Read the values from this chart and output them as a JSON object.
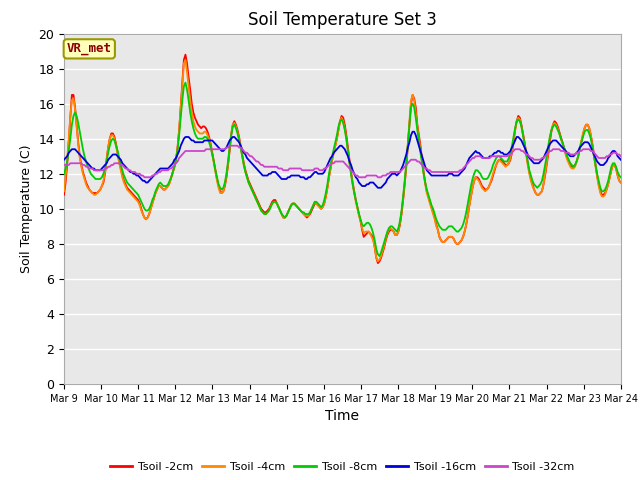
{
  "title": "Soil Temperature Set 3",
  "xlabel": "Time",
  "ylabel": "Soil Temperature (C)",
  "ylim": [
    0,
    20
  ],
  "yticks": [
    0,
    2,
    4,
    6,
    8,
    10,
    12,
    14,
    16,
    18,
    20
  ],
  "x_labels": [
    "Mar 9",
    "Mar 10",
    "Mar 11",
    "Mar 12",
    "Mar 13",
    "Mar 14",
    "Mar 15",
    "Mar 16",
    "Mar 17",
    "Mar 18",
    "Mar 19",
    "Mar 20",
    "Mar 21",
    "Mar 22",
    "Mar 23",
    "Mar 24"
  ],
  "annotation": "VR_met",
  "bg_color": "#e8e8e8",
  "grid_color": "#ffffff",
  "series_colors": [
    "#ff0000",
    "#ff8800",
    "#00cc00",
    "#0000dd",
    "#cc44cc"
  ],
  "series_labels": [
    "Tsoil -2cm",
    "Tsoil -4cm",
    "Tsoil -8cm",
    "Tsoil -16cm",
    "Tsoil -32cm"
  ],
  "tsoil_2cm": [
    10.8,
    11.5,
    12.5,
    13.8,
    15.2,
    16.5,
    16.5,
    15.8,
    14.8,
    13.8,
    13.0,
    12.5,
    12.1,
    11.8,
    11.5,
    11.3,
    11.1,
    11.0,
    10.9,
    10.9,
    10.9,
    10.9,
    11.0,
    11.1,
    11.3,
    11.5,
    12.0,
    12.8,
    13.5,
    14.0,
    14.3,
    14.3,
    14.1,
    13.7,
    13.2,
    12.7,
    12.3,
    11.9,
    11.6,
    11.4,
    11.2,
    11.1,
    11.0,
    10.9,
    10.8,
    10.7,
    10.6,
    10.5,
    10.3,
    10.0,
    9.7,
    9.5,
    9.4,
    9.5,
    9.7,
    10.0,
    10.3,
    10.6,
    10.9,
    11.1,
    11.3,
    11.3,
    11.2,
    11.1,
    11.1,
    11.2,
    11.3,
    11.5,
    11.8,
    12.1,
    12.4,
    12.8,
    13.5,
    14.5,
    15.8,
    17.2,
    18.5,
    18.8,
    18.3,
    17.5,
    16.8,
    16.0,
    15.5,
    15.2,
    15.0,
    14.8,
    14.7,
    14.6,
    14.7,
    14.7,
    14.6,
    14.4,
    14.1,
    13.7,
    13.2,
    12.7,
    12.2,
    11.7,
    11.3,
    11.0,
    10.9,
    11.0,
    11.3,
    11.8,
    12.5,
    13.3,
    14.2,
    14.8,
    15.0,
    14.8,
    14.5,
    14.1,
    13.6,
    13.1,
    12.6,
    12.2,
    11.9,
    11.6,
    11.4,
    11.2,
    11.0,
    10.8,
    10.6,
    10.4,
    10.2,
    10.0,
    9.9,
    9.8,
    9.8,
    9.9,
    10.0,
    10.2,
    10.4,
    10.5,
    10.5,
    10.3,
    10.1,
    9.9,
    9.7,
    9.5,
    9.5,
    9.6,
    9.8,
    10.0,
    10.2,
    10.3,
    10.3,
    10.2,
    10.1,
    10.0,
    9.9,
    9.8,
    9.7,
    9.6,
    9.5,
    9.6,
    9.7,
    9.9,
    10.1,
    10.3,
    10.3,
    10.2,
    10.1,
    10.0,
    10.1,
    10.3,
    10.7,
    11.2,
    11.8,
    12.3,
    12.8,
    13.2,
    13.6,
    14.0,
    14.5,
    15.0,
    15.3,
    15.2,
    14.8,
    14.2,
    13.5,
    12.8,
    12.1,
    11.5,
    11.0,
    10.5,
    10.1,
    9.7,
    9.3,
    8.8,
    8.4,
    8.5,
    8.6,
    8.7,
    8.6,
    8.5,
    8.3,
    7.8,
    7.2,
    6.9,
    7.0,
    7.2,
    7.5,
    7.8,
    8.2,
    8.5,
    8.7,
    8.8,
    8.8,
    8.7,
    8.5,
    8.5,
    8.7,
    9.1,
    9.7,
    10.5,
    11.4,
    12.4,
    13.6,
    14.8,
    16.0,
    16.5,
    16.3,
    15.8,
    14.8,
    14.2,
    13.6,
    12.8,
    12.1,
    11.5,
    11.0,
    10.7,
    10.4,
    10.1,
    9.8,
    9.5,
    9.1,
    8.8,
    8.4,
    8.2,
    8.1,
    8.1,
    8.2,
    8.3,
    8.4,
    8.4,
    8.4,
    8.3,
    8.1,
    8.0,
    8.0,
    8.1,
    8.2,
    8.4,
    8.7,
    9.1,
    9.6,
    10.2,
    10.7,
    11.2,
    11.6,
    11.8,
    11.8,
    11.7,
    11.5,
    11.3,
    11.2,
    11.1,
    11.1,
    11.2,
    11.4,
    11.6,
    11.9,
    12.2,
    12.5,
    12.7,
    12.8,
    12.8,
    12.7,
    12.6,
    12.5,
    12.5,
    12.6,
    12.8,
    13.2,
    13.8,
    14.5,
    15.0,
    15.3,
    15.2,
    14.8,
    14.3,
    13.8,
    13.2,
    12.6,
    12.1,
    11.7,
    11.4,
    11.1,
    10.9,
    10.8,
    10.8,
    10.9,
    11.0,
    11.4,
    11.9,
    12.5,
    13.1,
    13.8,
    14.4,
    14.8,
    15.0,
    14.9,
    14.7,
    14.4,
    14.1,
    13.8,
    13.5,
    13.2,
    12.9,
    12.7,
    12.5,
    12.4,
    12.4,
    12.5,
    12.7,
    13.0,
    13.4,
    13.8,
    14.2,
    14.6,
    14.8,
    14.8,
    14.6,
    14.2,
    13.7,
    13.1,
    12.5,
    11.9,
    11.4,
    11.0,
    10.8,
    10.8,
    10.9,
    11.1,
    11.4,
    11.8,
    12.2,
    12.5,
    12.5,
    12.3,
    11.9,
    11.6,
    11.5
  ],
  "tsoil_4cm": [
    11.0,
    11.8,
    12.8,
    14.0,
    15.3,
    16.2,
    16.3,
    15.7,
    14.7,
    13.7,
    12.9,
    12.4,
    12.0,
    11.7,
    11.4,
    11.2,
    11.1,
    11.0,
    10.9,
    10.8,
    10.8,
    10.9,
    11.0,
    11.1,
    11.3,
    11.6,
    12.1,
    12.8,
    13.5,
    14.0,
    14.2,
    14.2,
    14.0,
    13.6,
    13.1,
    12.6,
    12.2,
    11.8,
    11.5,
    11.3,
    11.1,
    11.0,
    10.9,
    10.8,
    10.7,
    10.6,
    10.5,
    10.4,
    10.2,
    9.9,
    9.7,
    9.5,
    9.4,
    9.5,
    9.7,
    10.0,
    10.3,
    10.6,
    10.9,
    11.1,
    11.3,
    11.3,
    11.2,
    11.1,
    11.1,
    11.2,
    11.3,
    11.5,
    11.8,
    12.1,
    12.4,
    12.8,
    13.5,
    14.5,
    15.8,
    17.0,
    18.3,
    18.5,
    17.8,
    17.0,
    16.2,
    15.5,
    15.0,
    14.7,
    14.5,
    14.4,
    14.3,
    14.3,
    14.3,
    14.4,
    14.4,
    14.2,
    14.0,
    13.6,
    13.1,
    12.6,
    12.1,
    11.6,
    11.2,
    10.9,
    10.9,
    11.0,
    11.4,
    11.9,
    12.6,
    13.5,
    14.3,
    14.8,
    14.9,
    14.7,
    14.4,
    14.0,
    13.5,
    13.0,
    12.5,
    12.1,
    11.8,
    11.5,
    11.3,
    11.1,
    10.9,
    10.7,
    10.5,
    10.3,
    10.1,
    9.9,
    9.8,
    9.7,
    9.7,
    9.8,
    9.9,
    10.1,
    10.3,
    10.4,
    10.4,
    10.3,
    10.1,
    9.9,
    9.7,
    9.5,
    9.5,
    9.6,
    9.8,
    10.0,
    10.2,
    10.3,
    10.3,
    10.2,
    10.1,
    10.0,
    9.9,
    9.8,
    9.7,
    9.6,
    9.6,
    9.6,
    9.8,
    10.0,
    10.2,
    10.4,
    10.3,
    10.2,
    10.1,
    10.0,
    10.1,
    10.3,
    10.7,
    11.2,
    11.8,
    12.3,
    12.8,
    13.2,
    13.6,
    14.0,
    14.5,
    15.0,
    15.2,
    15.0,
    14.6,
    14.0,
    13.3,
    12.6,
    12.0,
    11.4,
    10.9,
    10.4,
    10.0,
    9.6,
    9.3,
    8.9,
    8.6,
    8.7,
    8.7,
    8.7,
    8.6,
    8.4,
    8.2,
    7.8,
    7.2,
    7.0,
    7.1,
    7.3,
    7.6,
    7.9,
    8.3,
    8.6,
    8.8,
    8.9,
    8.8,
    8.7,
    8.5,
    8.5,
    8.7,
    9.2,
    9.8,
    10.6,
    11.5,
    12.5,
    13.7,
    15.0,
    16.2,
    16.5,
    16.2,
    15.5,
    14.7,
    14.0,
    13.4,
    12.7,
    12.0,
    11.4,
    10.9,
    10.6,
    10.3,
    10.0,
    9.7,
    9.4,
    9.0,
    8.8,
    8.4,
    8.2,
    8.1,
    8.1,
    8.2,
    8.3,
    8.4,
    8.4,
    8.4,
    8.3,
    8.1,
    8.0,
    8.0,
    8.1,
    8.2,
    8.4,
    8.7,
    9.1,
    9.6,
    10.2,
    10.7,
    11.2,
    11.6,
    11.8,
    11.7,
    11.6,
    11.4,
    11.2,
    11.1,
    11.0,
    11.1,
    11.2,
    11.4,
    11.7,
    12.0,
    12.3,
    12.5,
    12.7,
    12.8,
    12.7,
    12.6,
    12.5,
    12.4,
    12.5,
    12.6,
    12.9,
    13.3,
    13.9,
    14.5,
    15.0,
    15.2,
    15.1,
    14.7,
    14.2,
    13.7,
    13.1,
    12.5,
    12.0,
    11.6,
    11.3,
    11.1,
    10.9,
    10.8,
    10.8,
    10.9,
    11.0,
    11.4,
    12.0,
    12.6,
    13.3,
    14.0,
    14.5,
    14.8,
    14.9,
    14.8,
    14.6,
    14.3,
    14.0,
    13.7,
    13.4,
    13.1,
    12.8,
    12.6,
    12.4,
    12.3,
    12.3,
    12.4,
    12.7,
    13.0,
    13.5,
    13.9,
    14.3,
    14.6,
    14.8,
    14.8,
    14.6,
    14.2,
    13.6,
    13.0,
    12.4,
    11.8,
    11.3,
    10.9,
    10.7,
    10.7,
    10.8,
    11.1,
    11.4,
    11.8,
    12.2,
    12.5,
    12.5,
    12.3,
    11.9,
    11.6,
    11.5
  ],
  "tsoil_8cm": [
    12.0,
    12.3,
    12.7,
    13.3,
    14.0,
    14.8,
    15.3,
    15.5,
    15.3,
    14.9,
    14.4,
    13.9,
    13.4,
    13.0,
    12.7,
    12.4,
    12.2,
    12.0,
    11.9,
    11.8,
    11.7,
    11.7,
    11.7,
    11.7,
    11.8,
    12.0,
    12.3,
    12.7,
    13.2,
    13.6,
    13.9,
    14.0,
    13.9,
    13.6,
    13.3,
    12.9,
    12.5,
    12.2,
    11.9,
    11.7,
    11.5,
    11.4,
    11.3,
    11.2,
    11.1,
    11.0,
    10.9,
    10.8,
    10.6,
    10.4,
    10.2,
    10.0,
    9.9,
    9.9,
    10.0,
    10.2,
    10.5,
    10.7,
    11.0,
    11.2,
    11.4,
    11.5,
    11.4,
    11.3,
    11.3,
    11.3,
    11.4,
    11.6,
    11.8,
    12.1,
    12.4,
    12.8,
    13.4,
    14.2,
    15.2,
    16.2,
    17.0,
    17.2,
    16.8,
    16.2,
    15.5,
    15.0,
    14.6,
    14.3,
    14.1,
    14.0,
    14.0,
    14.0,
    14.0,
    14.1,
    14.1,
    14.0,
    13.8,
    13.5,
    13.1,
    12.7,
    12.2,
    11.8,
    11.4,
    11.2,
    11.1,
    11.2,
    11.5,
    12.0,
    12.7,
    13.5,
    14.2,
    14.7,
    14.8,
    14.6,
    14.3,
    13.9,
    13.5,
    13.0,
    12.5,
    12.1,
    11.8,
    11.5,
    11.3,
    11.1,
    10.9,
    10.7,
    10.5,
    10.3,
    10.1,
    9.9,
    9.8,
    9.7,
    9.7,
    9.8,
    9.9,
    10.1,
    10.3,
    10.4,
    10.4,
    10.3,
    10.1,
    9.9,
    9.7,
    9.6,
    9.5,
    9.6,
    9.8,
    10.0,
    10.2,
    10.3,
    10.3,
    10.2,
    10.1,
    10.0,
    9.9,
    9.8,
    9.8,
    9.7,
    9.7,
    9.7,
    9.8,
    10.0,
    10.2,
    10.4,
    10.4,
    10.3,
    10.2,
    10.1,
    10.2,
    10.5,
    10.9,
    11.4,
    12.0,
    12.5,
    13.0,
    13.4,
    13.8,
    14.2,
    14.7,
    15.0,
    15.1,
    14.9,
    14.5,
    14.0,
    13.3,
    12.6,
    12.0,
    11.4,
    10.9,
    10.5,
    10.1,
    9.7,
    9.4,
    9.1,
    9.0,
    9.1,
    9.2,
    9.2,
    9.1,
    8.9,
    8.6,
    8.2,
    7.7,
    7.4,
    7.3,
    7.5,
    7.8,
    8.1,
    8.4,
    8.7,
    8.9,
    9.0,
    9.0,
    8.9,
    8.8,
    8.7,
    8.9,
    9.3,
    9.9,
    10.7,
    11.6,
    12.6,
    13.7,
    14.8,
    15.8,
    16.0,
    15.8,
    15.2,
    14.5,
    13.8,
    13.2,
    12.6,
    12.0,
    11.5,
    11.1,
    10.8,
    10.5,
    10.2,
    10.0,
    9.7,
    9.4,
    9.2,
    9.0,
    8.9,
    8.8,
    8.8,
    8.8,
    8.9,
    9.0,
    9.0,
    9.0,
    8.9,
    8.8,
    8.7,
    8.7,
    8.8,
    8.9,
    9.1,
    9.4,
    9.8,
    10.3,
    10.8,
    11.3,
    11.7,
    12.0,
    12.2,
    12.2,
    12.1,
    12.0,
    11.8,
    11.7,
    11.7,
    11.7,
    11.8,
    12.0,
    12.2,
    12.5,
    12.7,
    12.9,
    13.0,
    13.0,
    12.9,
    12.8,
    12.7,
    12.7,
    12.7,
    12.9,
    13.2,
    13.6,
    14.1,
    14.6,
    15.0,
    15.1,
    15.0,
    14.7,
    14.2,
    13.7,
    13.2,
    12.7,
    12.2,
    11.9,
    11.6,
    11.4,
    11.3,
    11.2,
    11.3,
    11.4,
    11.6,
    12.0,
    12.5,
    13.0,
    13.6,
    14.1,
    14.5,
    14.7,
    14.8,
    14.7,
    14.5,
    14.3,
    14.0,
    13.8,
    13.5,
    13.3,
    13.0,
    12.8,
    12.6,
    12.5,
    12.4,
    12.5,
    12.7,
    13.0,
    13.4,
    13.8,
    14.1,
    14.4,
    14.5,
    14.5,
    14.3,
    14.0,
    13.5,
    13.0,
    12.5,
    12.0,
    11.6,
    11.2,
    11.0,
    11.0,
    11.1,
    11.3,
    11.6,
    12.0,
    12.4,
    12.6,
    12.6,
    12.4,
    12.1,
    11.9,
    11.8
  ],
  "tsoil_16cm": [
    12.8,
    12.9,
    13.0,
    13.2,
    13.3,
    13.4,
    13.4,
    13.4,
    13.3,
    13.2,
    13.1,
    13.0,
    12.9,
    12.8,
    12.7,
    12.6,
    12.5,
    12.4,
    12.3,
    12.3,
    12.2,
    12.2,
    12.2,
    12.2,
    12.3,
    12.4,
    12.5,
    12.6,
    12.8,
    12.9,
    13.0,
    13.1,
    13.1,
    13.1,
    13.0,
    12.9,
    12.8,
    12.6,
    12.5,
    12.4,
    12.3,
    12.2,
    12.1,
    12.1,
    12.0,
    12.0,
    11.9,
    11.9,
    11.8,
    11.7,
    11.6,
    11.6,
    11.5,
    11.5,
    11.6,
    11.7,
    11.8,
    11.9,
    12.0,
    12.1,
    12.2,
    12.3,
    12.3,
    12.3,
    12.3,
    12.3,
    12.3,
    12.4,
    12.5,
    12.6,
    12.8,
    12.9,
    13.1,
    13.3,
    13.6,
    13.8,
    14.0,
    14.1,
    14.1,
    14.1,
    14.0,
    13.9,
    13.9,
    13.8,
    13.8,
    13.8,
    13.8,
    13.8,
    13.8,
    13.9,
    13.9,
    13.9,
    13.9,
    13.9,
    13.9,
    13.8,
    13.7,
    13.6,
    13.5,
    13.4,
    13.3,
    13.3,
    13.4,
    13.5,
    13.7,
    13.9,
    14.0,
    14.1,
    14.1,
    14.0,
    13.9,
    13.8,
    13.6,
    13.4,
    13.2,
    13.1,
    12.9,
    12.8,
    12.7,
    12.6,
    12.5,
    12.4,
    12.3,
    12.2,
    12.1,
    12.0,
    11.9,
    11.9,
    11.9,
    11.9,
    12.0,
    12.0,
    12.1,
    12.1,
    12.1,
    12.0,
    11.9,
    11.8,
    11.7,
    11.7,
    11.7,
    11.7,
    11.8,
    11.8,
    11.9,
    11.9,
    11.9,
    11.9,
    11.9,
    11.9,
    11.8,
    11.8,
    11.8,
    11.7,
    11.7,
    11.8,
    11.8,
    11.9,
    12.0,
    12.1,
    12.1,
    12.0,
    12.0,
    12.0,
    12.0,
    12.1,
    12.3,
    12.5,
    12.7,
    12.9,
    13.0,
    13.2,
    13.3,
    13.4,
    13.5,
    13.6,
    13.6,
    13.5,
    13.4,
    13.2,
    13.0,
    12.7,
    12.5,
    12.2,
    12.0,
    11.8,
    11.7,
    11.5,
    11.4,
    11.3,
    11.3,
    11.3,
    11.4,
    11.4,
    11.5,
    11.5,
    11.5,
    11.4,
    11.3,
    11.2,
    11.2,
    11.2,
    11.3,
    11.4,
    11.5,
    11.7,
    11.8,
    11.9,
    12.0,
    12.0,
    12.0,
    11.9,
    12.0,
    12.1,
    12.3,
    12.5,
    12.8,
    13.1,
    13.5,
    13.8,
    14.2,
    14.4,
    14.4,
    14.2,
    13.9,
    13.6,
    13.3,
    13.0,
    12.7,
    12.4,
    12.2,
    12.1,
    12.0,
    11.9,
    11.9,
    11.9,
    11.9,
    11.9,
    11.9,
    11.9,
    11.9,
    11.9,
    11.9,
    11.9,
    12.0,
    12.0,
    12.0,
    11.9,
    11.9,
    11.9,
    11.9,
    12.0,
    12.1,
    12.2,
    12.3,
    12.5,
    12.7,
    12.9,
    13.0,
    13.1,
    13.2,
    13.3,
    13.2,
    13.2,
    13.1,
    13.0,
    12.9,
    12.9,
    12.9,
    12.9,
    13.0,
    13.0,
    13.1,
    13.2,
    13.2,
    13.3,
    13.3,
    13.2,
    13.2,
    13.1,
    13.1,
    13.1,
    13.2,
    13.3,
    13.5,
    13.7,
    13.9,
    14.1,
    14.1,
    14.0,
    13.9,
    13.7,
    13.5,
    13.3,
    13.1,
    12.9,
    12.8,
    12.7,
    12.6,
    12.6,
    12.6,
    12.6,
    12.7,
    12.8,
    12.9,
    13.1,
    13.3,
    13.5,
    13.7,
    13.8,
    13.9,
    13.9,
    13.9,
    13.8,
    13.7,
    13.6,
    13.5,
    13.4,
    13.3,
    13.2,
    13.1,
    13.0,
    13.0,
    13.0,
    13.1,
    13.2,
    13.3,
    13.5,
    13.6,
    13.7,
    13.8,
    13.8,
    13.8,
    13.7,
    13.5,
    13.3,
    13.1,
    12.9,
    12.7,
    12.6,
    12.5,
    12.5,
    12.5,
    12.6,
    12.7,
    12.9,
    13.0,
    13.2,
    13.3,
    13.3,
    13.2,
    13.0,
    12.9,
    12.8
  ],
  "tsoil_32cm": [
    12.5,
    12.5,
    12.5,
    12.5,
    12.6,
    12.6,
    12.6,
    12.6,
    12.6,
    12.6,
    12.6,
    12.6,
    12.5,
    12.5,
    12.4,
    12.4,
    12.3,
    12.3,
    12.3,
    12.2,
    12.2,
    12.2,
    12.2,
    12.2,
    12.2,
    12.2,
    12.3,
    12.3,
    12.4,
    12.4,
    12.5,
    12.5,
    12.6,
    12.6,
    12.6,
    12.6,
    12.5,
    12.5,
    12.4,
    12.3,
    12.3,
    12.2,
    12.2,
    12.1,
    12.1,
    12.1,
    12.0,
    12.0,
    12.0,
    11.9,
    11.9,
    11.8,
    11.8,
    11.8,
    11.8,
    11.8,
    11.9,
    11.9,
    12.0,
    12.0,
    12.1,
    12.1,
    12.2,
    12.2,
    12.2,
    12.2,
    12.2,
    12.3,
    12.3,
    12.4,
    12.5,
    12.6,
    12.7,
    12.9,
    13.0,
    13.1,
    13.2,
    13.3,
    13.3,
    13.3,
    13.3,
    13.3,
    13.3,
    13.3,
    13.3,
    13.3,
    13.3,
    13.3,
    13.3,
    13.3,
    13.4,
    13.4,
    13.4,
    13.4,
    13.4,
    13.4,
    13.4,
    13.4,
    13.4,
    13.4,
    13.4,
    13.4,
    13.4,
    13.5,
    13.5,
    13.6,
    13.6,
    13.6,
    13.6,
    13.6,
    13.6,
    13.5,
    13.5,
    13.4,
    13.3,
    13.2,
    13.2,
    13.1,
    13.0,
    13.0,
    12.9,
    12.8,
    12.7,
    12.7,
    12.6,
    12.5,
    12.5,
    12.4,
    12.4,
    12.4,
    12.4,
    12.4,
    12.4,
    12.4,
    12.4,
    12.4,
    12.3,
    12.3,
    12.3,
    12.2,
    12.2,
    12.2,
    12.2,
    12.3,
    12.3,
    12.3,
    12.3,
    12.3,
    12.3,
    12.3,
    12.3,
    12.2,
    12.2,
    12.2,
    12.2,
    12.2,
    12.2,
    12.2,
    12.2,
    12.3,
    12.3,
    12.3,
    12.2,
    12.2,
    12.2,
    12.3,
    12.3,
    12.4,
    12.5,
    12.5,
    12.6,
    12.6,
    12.7,
    12.7,
    12.7,
    12.7,
    12.7,
    12.7,
    12.6,
    12.5,
    12.4,
    12.3,
    12.2,
    12.1,
    12.0,
    11.9,
    11.9,
    11.8,
    11.8,
    11.8,
    11.8,
    11.8,
    11.9,
    11.9,
    11.9,
    11.9,
    11.9,
    11.9,
    11.9,
    11.8,
    11.8,
    11.8,
    11.9,
    11.9,
    11.9,
    12.0,
    12.0,
    12.1,
    12.1,
    12.1,
    12.1,
    12.1,
    12.1,
    12.1,
    12.2,
    12.3,
    12.4,
    12.5,
    12.6,
    12.7,
    12.8,
    12.8,
    12.8,
    12.8,
    12.7,
    12.7,
    12.6,
    12.5,
    12.4,
    12.3,
    12.3,
    12.2,
    12.2,
    12.1,
    12.1,
    12.1,
    12.1,
    12.1,
    12.1,
    12.1,
    12.1,
    12.1,
    12.1,
    12.1,
    12.1,
    12.1,
    12.1,
    12.1,
    12.1,
    12.1,
    12.1,
    12.2,
    12.2,
    12.3,
    12.4,
    12.5,
    12.6,
    12.7,
    12.8,
    12.9,
    12.9,
    13.0,
    13.0,
    13.0,
    13.0,
    12.9,
    12.9,
    12.9,
    12.9,
    12.9,
    12.9,
    13.0,
    13.0,
    13.0,
    13.0,
    13.0,
    13.0,
    13.0,
    13.0,
    13.0,
    13.0,
    13.0,
    13.1,
    13.1,
    13.2,
    13.3,
    13.4,
    13.4,
    13.4,
    13.4,
    13.3,
    13.3,
    13.2,
    13.1,
    13.1,
    13.0,
    12.9,
    12.9,
    12.8,
    12.8,
    12.8,
    12.8,
    12.8,
    12.9,
    12.9,
    13.0,
    13.1,
    13.2,
    13.3,
    13.3,
    13.4,
    13.4,
    13.4,
    13.4,
    13.4,
    13.3,
    13.3,
    13.3,
    13.2,
    13.2,
    13.2,
    13.1,
    13.1,
    13.1,
    13.1,
    13.2,
    13.2,
    13.3,
    13.3,
    13.4,
    13.4,
    13.4,
    13.4,
    13.4,
    13.3,
    13.3,
    13.2,
    13.1,
    13.0,
    12.9,
    12.9,
    12.9,
    12.9,
    12.9,
    13.0,
    13.0,
    13.1,
    13.1,
    13.2,
    13.2,
    13.2,
    13.1,
    13.1,
    13.0
  ]
}
